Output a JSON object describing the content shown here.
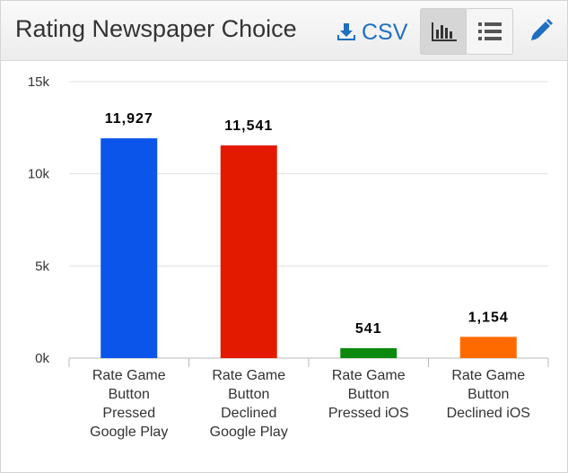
{
  "header": {
    "title": "Rating Newspaper Choice",
    "csv_label": "CSV",
    "icons": {
      "download": "download-icon",
      "bar_chart": "bar-chart-icon",
      "list": "list-icon",
      "edit": "pencil-icon"
    }
  },
  "colors": {
    "accent": "#1f6fbf",
    "grid": "#e0e0e0"
  },
  "chart_data": {
    "type": "bar",
    "categories": [
      [
        "Rate Game",
        "Button",
        "Pressed",
        "Google Play"
      ],
      [
        "Rate Game",
        "Button",
        "Declined",
        "Google Play"
      ],
      [
        "Rate Game",
        "Button",
        "Pressed iOS"
      ],
      [
        "Rate Game",
        "Button",
        "Declined iOS"
      ]
    ],
    "values": [
      11927,
      11541,
      541,
      1154
    ],
    "data_labels": [
      "11,927",
      "11,541",
      "541",
      "1,154"
    ],
    "colors": [
      "#0b55ea",
      "#e41a00",
      "#0d8a0d",
      "#ff6a00"
    ],
    "yticks": [
      0,
      5000,
      10000,
      15000
    ],
    "ytick_labels": [
      "0k",
      "5k",
      "10k",
      "15k"
    ],
    "ylim": [
      0,
      15000
    ],
    "grid": true,
    "legend": "none"
  }
}
